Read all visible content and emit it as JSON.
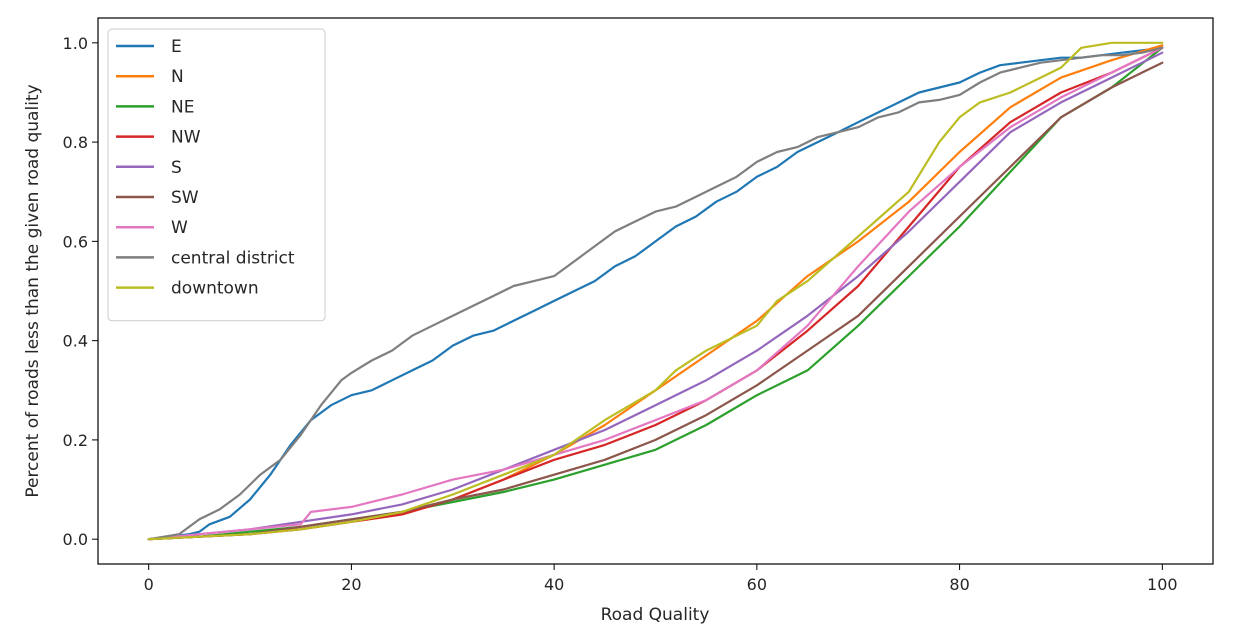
{
  "chart_data": {
    "type": "line",
    "xlabel": "Road Quality",
    "ylabel": "Percent of roads less than the given road quality",
    "xlim": [
      -5,
      105
    ],
    "ylim": [
      -0.05,
      1.05
    ],
    "xticks": [
      0,
      20,
      40,
      60,
      80,
      100
    ],
    "yticks": [
      0.0,
      0.2,
      0.4,
      0.6,
      0.8,
      1.0
    ],
    "xtick_labels": [
      "0",
      "20",
      "40",
      "60",
      "80",
      "100"
    ],
    "ytick_labels": [
      "0.0",
      "0.2",
      "0.4",
      "0.6",
      "0.8",
      "1.0"
    ],
    "grid": false,
    "legend_position": "top-left",
    "series": [
      {
        "name": "E",
        "color": "#1f77b4",
        "x": [
          0,
          4,
          5,
          6,
          8,
          10,
          12,
          14,
          16,
          18,
          20,
          22,
          24,
          26,
          28,
          30,
          32,
          34,
          36,
          38,
          40,
          42,
          44,
          46,
          48,
          50,
          52,
          54,
          56,
          58,
          60,
          62,
          64,
          66,
          68,
          70,
          72,
          74,
          76,
          78,
          80,
          82,
          84,
          86,
          88,
          90,
          92,
          94,
          96,
          98,
          100
        ],
        "y": [
          0,
          0.01,
          0.015,
          0.03,
          0.045,
          0.08,
          0.13,
          0.19,
          0.24,
          0.27,
          0.29,
          0.3,
          0.32,
          0.34,
          0.36,
          0.39,
          0.41,
          0.42,
          0.44,
          0.46,
          0.48,
          0.5,
          0.52,
          0.55,
          0.57,
          0.6,
          0.63,
          0.65,
          0.68,
          0.7,
          0.73,
          0.75,
          0.78,
          0.8,
          0.82,
          0.84,
          0.86,
          0.88,
          0.9,
          0.91,
          0.92,
          0.94,
          0.955,
          0.96,
          0.965,
          0.97,
          0.97,
          0.975,
          0.98,
          0.985,
          0.99
        ]
      },
      {
        "name": "N",
        "color": "#ff7f0e",
        "x": [
          0,
          5,
          10,
          15,
          20,
          25,
          30,
          35,
          40,
          45,
          50,
          55,
          60,
          65,
          70,
          75,
          80,
          85,
          90,
          95,
          100
        ],
        "y": [
          0,
          0.005,
          0.01,
          0.02,
          0.035,
          0.05,
          0.08,
          0.12,
          0.17,
          0.23,
          0.3,
          0.37,
          0.44,
          0.53,
          0.6,
          0.68,
          0.78,
          0.87,
          0.93,
          0.965,
          0.995
        ]
      },
      {
        "name": "NE",
        "color": "#2ca02c",
        "x": [
          0,
          5,
          10,
          15,
          20,
          25,
          30,
          35,
          40,
          45,
          50,
          55,
          60,
          65,
          70,
          75,
          80,
          85,
          90,
          95,
          100
        ],
        "y": [
          0,
          0.005,
          0.015,
          0.025,
          0.04,
          0.055,
          0.075,
          0.095,
          0.12,
          0.15,
          0.18,
          0.23,
          0.29,
          0.34,
          0.43,
          0.53,
          0.63,
          0.74,
          0.85,
          0.91,
          0.99
        ]
      },
      {
        "name": "NW",
        "color": "#d62728",
        "x": [
          0,
          5,
          10,
          15,
          20,
          25,
          30,
          35,
          40,
          45,
          50,
          55,
          60,
          65,
          70,
          75,
          80,
          85,
          90,
          95,
          100
        ],
        "y": [
          0,
          0.005,
          0.01,
          0.02,
          0.035,
          0.05,
          0.08,
          0.12,
          0.16,
          0.19,
          0.23,
          0.28,
          0.34,
          0.42,
          0.51,
          0.63,
          0.75,
          0.84,
          0.9,
          0.94,
          0.99
        ]
      },
      {
        "name": "S",
        "color": "#9467bd",
        "x": [
          0,
          5,
          10,
          15,
          20,
          25,
          30,
          35,
          40,
          45,
          50,
          55,
          60,
          65,
          70,
          75,
          80,
          85,
          90,
          95,
          100
        ],
        "y": [
          0,
          0.01,
          0.02,
          0.035,
          0.05,
          0.07,
          0.1,
          0.14,
          0.18,
          0.22,
          0.27,
          0.32,
          0.38,
          0.45,
          0.53,
          0.62,
          0.72,
          0.82,
          0.88,
          0.93,
          0.98
        ]
      },
      {
        "name": "SW",
        "color": "#8c564b",
        "x": [
          0,
          5,
          10,
          15,
          20,
          25,
          30,
          35,
          40,
          45,
          50,
          55,
          60,
          65,
          70,
          75,
          80,
          85,
          90,
          95,
          100
        ],
        "y": [
          0,
          0.005,
          0.01,
          0.025,
          0.04,
          0.055,
          0.08,
          0.1,
          0.13,
          0.16,
          0.2,
          0.25,
          0.31,
          0.38,
          0.45,
          0.55,
          0.65,
          0.75,
          0.85,
          0.91,
          0.96
        ]
      },
      {
        "name": "W",
        "color": "#e377c2",
        "x": [
          0,
          5,
          10,
          15,
          16,
          20,
          25,
          30,
          35,
          40,
          45,
          50,
          55,
          60,
          65,
          70,
          75,
          80,
          85,
          90,
          95,
          100
        ],
        "y": [
          0,
          0.01,
          0.02,
          0.03,
          0.055,
          0.065,
          0.09,
          0.12,
          0.14,
          0.17,
          0.2,
          0.24,
          0.28,
          0.34,
          0.43,
          0.55,
          0.66,
          0.75,
          0.83,
          0.89,
          0.94,
          0.99
        ]
      },
      {
        "name": "central district",
        "color": "#7f7f7f",
        "x": [
          0,
          3,
          5,
          7,
          9,
          11,
          13,
          15,
          17,
          19,
          20,
          22,
          24,
          26,
          28,
          30,
          32,
          34,
          36,
          38,
          40,
          42,
          44,
          46,
          48,
          50,
          52,
          54,
          56,
          58,
          60,
          62,
          64,
          66,
          68,
          70,
          72,
          74,
          76,
          78,
          80,
          82,
          84,
          86,
          88,
          90,
          92,
          94,
          96,
          98,
          100
        ],
        "y": [
          0,
          0.01,
          0.04,
          0.06,
          0.09,
          0.13,
          0.16,
          0.21,
          0.27,
          0.32,
          0.335,
          0.36,
          0.38,
          0.41,
          0.43,
          0.45,
          0.47,
          0.49,
          0.51,
          0.52,
          0.53,
          0.56,
          0.59,
          0.62,
          0.64,
          0.66,
          0.67,
          0.69,
          0.71,
          0.73,
          0.76,
          0.78,
          0.79,
          0.81,
          0.82,
          0.83,
          0.85,
          0.86,
          0.88,
          0.885,
          0.895,
          0.92,
          0.94,
          0.95,
          0.96,
          0.965,
          0.97,
          0.975,
          0.975,
          0.98,
          0.99
        ]
      },
      {
        "name": "downtown",
        "color": "#bcbd22",
        "x": [
          0,
          5,
          10,
          15,
          20,
          25,
          30,
          35,
          40,
          45,
          50,
          52,
          55,
          60,
          62,
          65,
          70,
          75,
          78,
          80,
          82,
          85,
          88,
          90,
          92,
          95,
          98,
          100
        ],
        "y": [
          0,
          0.005,
          0.01,
          0.02,
          0.035,
          0.055,
          0.09,
          0.13,
          0.17,
          0.24,
          0.3,
          0.34,
          0.38,
          0.43,
          0.48,
          0.52,
          0.61,
          0.7,
          0.8,
          0.85,
          0.88,
          0.9,
          0.93,
          0.95,
          0.99,
          1.0,
          1.0,
          1.0
        ]
      }
    ]
  }
}
